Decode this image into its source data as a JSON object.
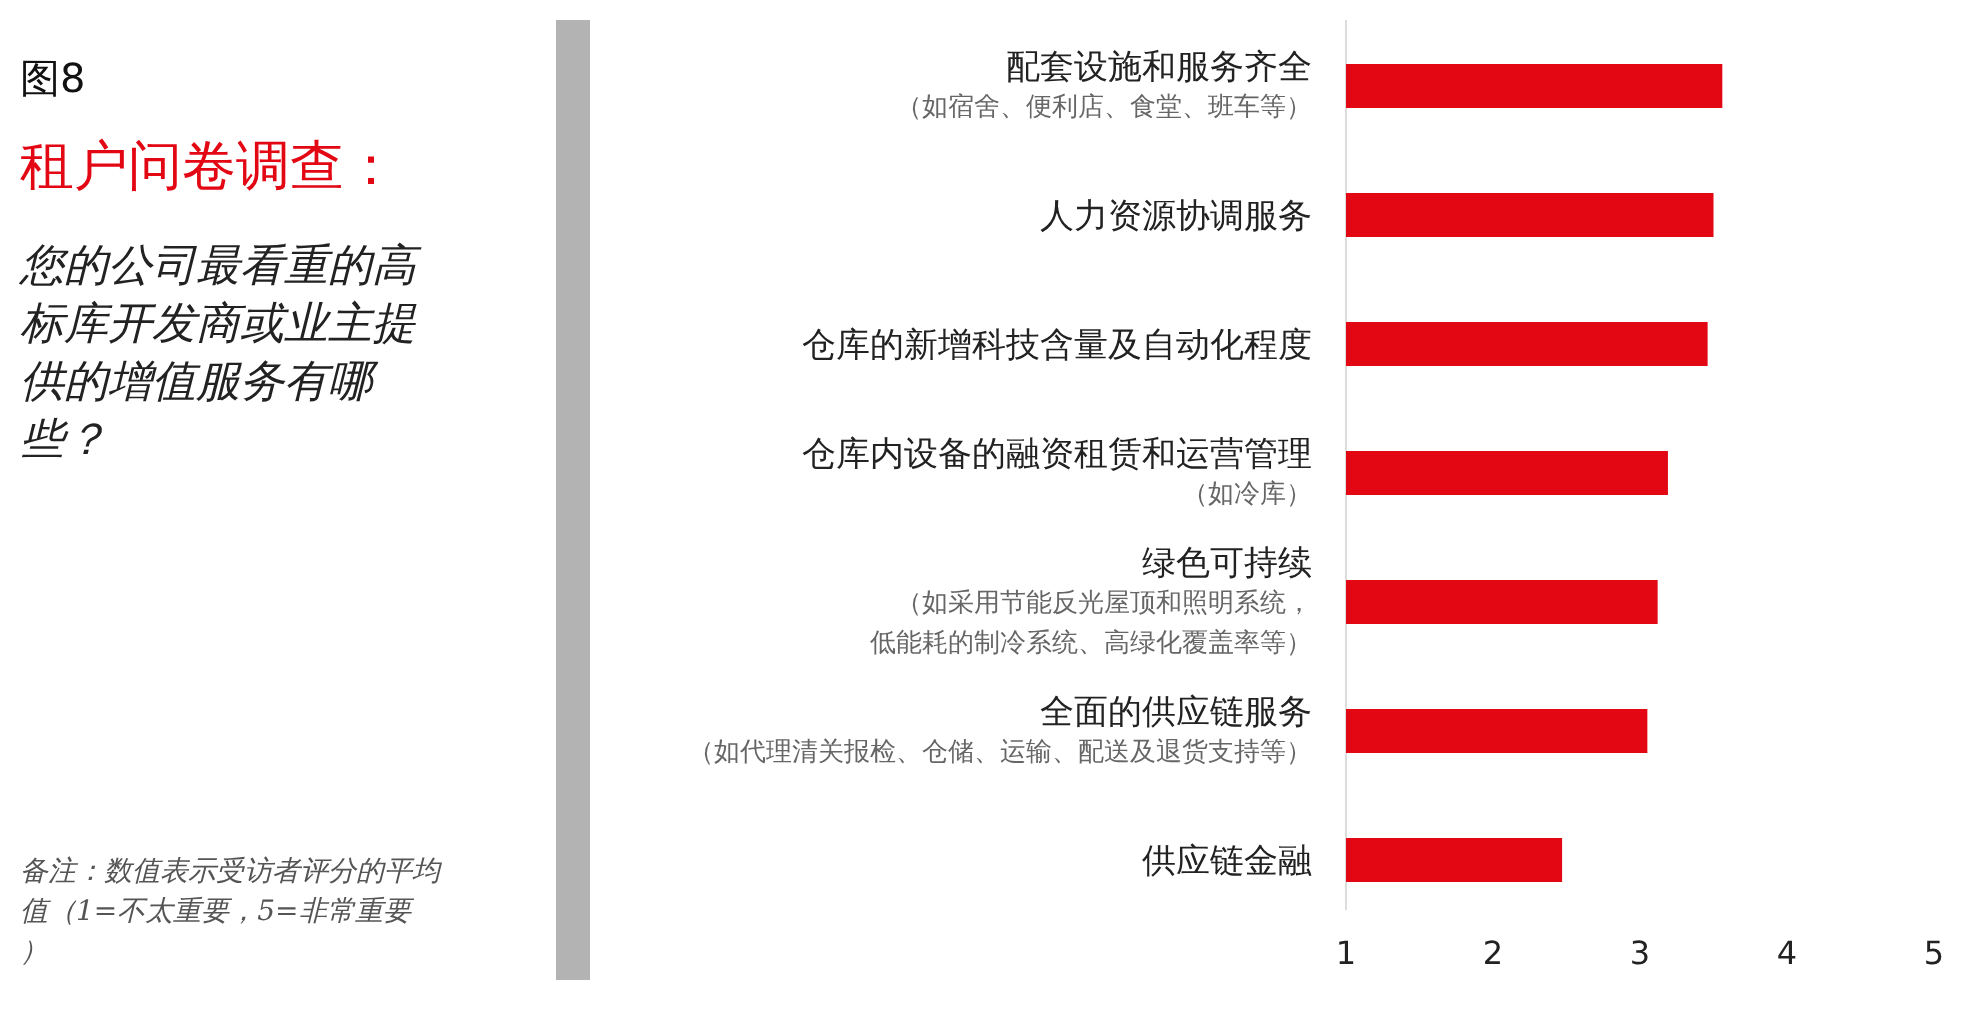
{
  "chart_data": {
    "type": "bar",
    "orientation": "horizontal",
    "title": "租户问卷调查：",
    "subtitle": "您的公司最看重的高标库开发商或业主提供的增值服务有哪些？",
    "annotations": [
      "图8",
      "备注：数值表示受访者评分的平均值（1=不太重要，5=非常重要）"
    ],
    "categories": [
      "配套设施和服务齐全（如宿舍、便利店、食堂、班车等）",
      "人力资源协调服务",
      "仓库的新增科技含量及自动化程度",
      "仓库内设备的融资租赁和运营管理（如冷库）",
      "绿色可持续（如采用节能反光屋顶和照明系统，低能耗的制冷系统、高绿化覆盖率等）",
      "全面的供应链服务（如代理清关报检、仓储、运输、配送及退货支持等）",
      "供应链金融"
    ],
    "values": [
      3.56,
      3.5,
      3.46,
      3.19,
      3.12,
      3.05,
      2.47
    ],
    "color": "#e30613",
    "xlim": [
      1,
      5
    ],
    "xticks": [
      1,
      2,
      3,
      4,
      5
    ],
    "grid": false
  }
}
